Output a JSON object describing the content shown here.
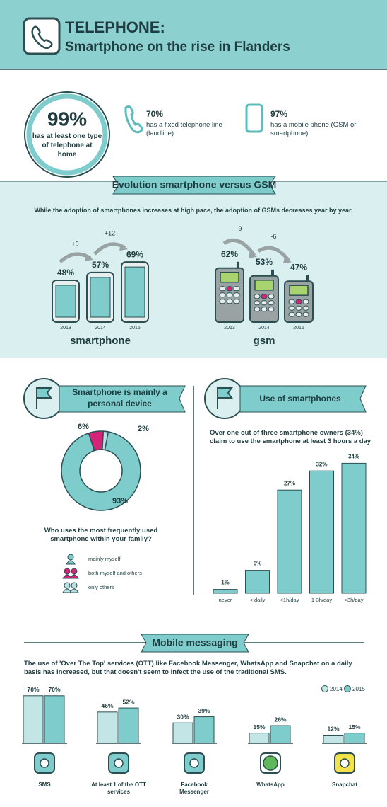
{
  "header": {
    "title": "TELEPHONE:",
    "subtitle": "Smartphone on the rise in Flanders"
  },
  "stats": [
    {
      "value": "99%",
      "label": "has at least one type of telephone at home"
    },
    {
      "value": "70%",
      "label": "has a fixed telephone line (landline)"
    },
    {
      "value": "97%",
      "label": "has a mobile phone (GSM or smartphone)"
    }
  ],
  "evolution": {
    "title": "Evolution smartphone versus GSM",
    "text": "While the adoption of smartphones increases at high pace, the adoption of GSMs decreases year by year."
  },
  "chart_data": [
    {
      "type": "phones",
      "device": "smartphone",
      "label": "smartphone",
      "categories": [
        "2013",
        "2014",
        "2015"
      ],
      "values": [
        48,
        57,
        69
      ],
      "value_labels": [
        "48%",
        "57%",
        "69%"
      ],
      "changes": [
        "+9",
        "+12"
      ],
      "color": "#7fcccc"
    },
    {
      "type": "phones",
      "device": "gsm",
      "label": "gsm",
      "categories": [
        "2013",
        "2014",
        "2015"
      ],
      "values": [
        62,
        53,
        47
      ],
      "value_labels": [
        "62%",
        "53%",
        "47%"
      ],
      "changes": [
        "-9",
        "-6"
      ],
      "color": "#a9d36e"
    },
    {
      "type": "pie",
      "title": "Smartphone is mainly a personal device",
      "question": "Who uses the most frequently used smartphone within your family?",
      "categories": [
        "mainly myself",
        "both myself and others",
        "only others"
      ],
      "values": [
        93,
        6,
        2
      ],
      "value_labels": [
        "93%",
        "6%",
        "2%"
      ],
      "colors": [
        "#7fcccc",
        "#d6237a",
        "#b9e0e0"
      ]
    },
    {
      "type": "bar",
      "title": "Use of smartphones",
      "subtitle": "Over one out of three smartphone owners (34%) claim to use the smartphone at least 3 hours a day",
      "categories": [
        "never",
        "< daily",
        "<1h/day",
        "1-3h/day",
        ">3h/day"
      ],
      "values": [
        1,
        6,
        27,
        32,
        34
      ],
      "value_labels": [
        "1%",
        "6%",
        "27%",
        "32%",
        "34%"
      ],
      "color": "#7fcccc"
    },
    {
      "type": "grouped_bar",
      "title": "Mobile messaging",
      "subtitle": "The use of 'Over The Top' services (OTT) like Facebook Messenger, WhatsApp and Snapchat on a daily basis has increased, but that doesn't seem to infect the use of the traditional SMS.",
      "categories": [
        "SMS",
        "At least 1 of the OTT services",
        "Facebook Messenger",
        "WhatsApp",
        "Snapchat"
      ],
      "series": [
        {
          "name": "2014",
          "color": "#c4e5e5",
          "values": [
            70,
            46,
            30,
            15,
            12
          ],
          "value_labels": [
            "70%",
            "46%",
            "30%",
            "15%",
            "12%"
          ]
        },
        {
          "name": "2015",
          "color": "#7fcccc",
          "values": [
            70,
            52,
            39,
            26,
            15
          ],
          "value_labels": [
            "70%",
            "52%",
            "39%",
            "26%",
            "15%"
          ]
        }
      ]
    }
  ]
}
